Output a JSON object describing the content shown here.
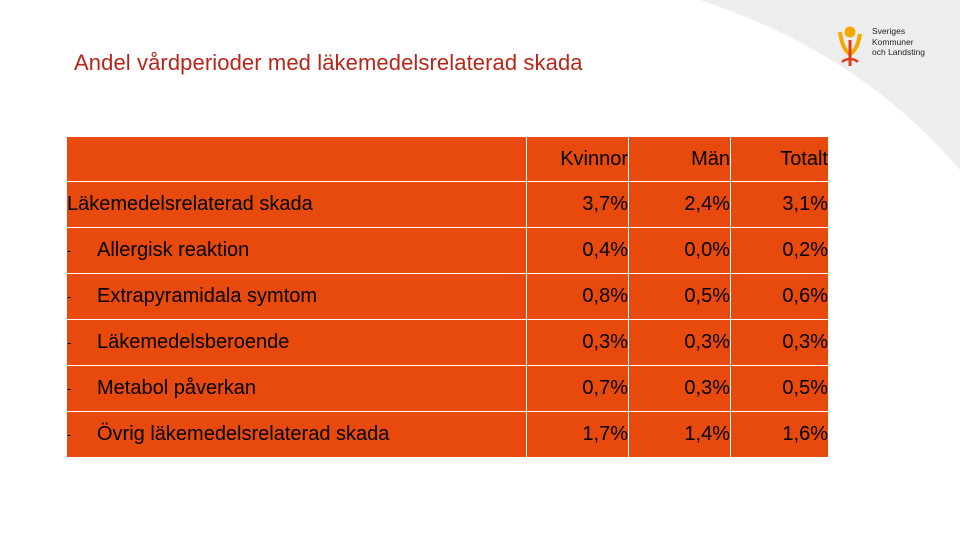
{
  "title": "Andel vårdperioder med läkemedelsrelaterad skada",
  "logo": {
    "lines": [
      "Sveriges",
      "Kommuner",
      "och Landsting"
    ],
    "colors": {
      "orange": "#f5a800",
      "red": "#e03c1a"
    }
  },
  "table": {
    "headers": [
      "",
      "Kvinnor",
      "Män",
      "Totalt"
    ],
    "rows": [
      {
        "prefix": "",
        "label": "Läkemedelsrelaterad skada",
        "kvinnor": "3,7%",
        "man": "2,4%",
        "totalt": "3,1%"
      },
      {
        "prefix": "-",
        "label": "Allergisk reaktion",
        "kvinnor": "0,4%",
        "man": "0,0%",
        "totalt": "0,2%"
      },
      {
        "prefix": "-",
        "label": "Extrapyramidala symtom",
        "kvinnor": "0,8%",
        "man": "0,5%",
        "totalt": "0,6%"
      },
      {
        "prefix": "-",
        "label": "Läkemedelsberoende",
        "kvinnor": "0,3%",
        "man": "0,3%",
        "totalt": "0,3%"
      },
      {
        "prefix": "-",
        "label": "Metabol påverkan",
        "kvinnor": "0,7%",
        "man": "0,3%",
        "totalt": "0,5%"
      },
      {
        "prefix": "-",
        "label": "Övrig läkemedelsrelaterad skada",
        "kvinnor": "1,7%",
        "man": "1,4%",
        "totalt": "1,6%"
      }
    ],
    "cell_color": "#e8490c",
    "title_color": "#b8261a"
  }
}
